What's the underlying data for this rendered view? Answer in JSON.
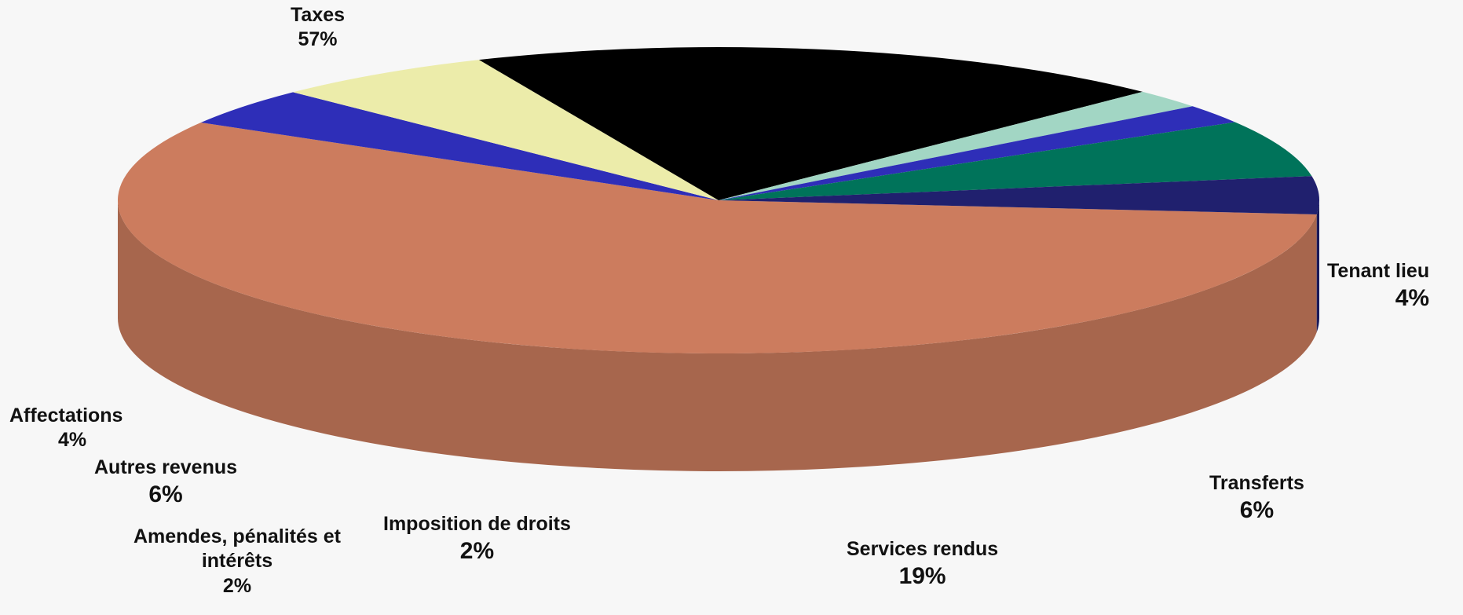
{
  "chart_data": {
    "type": "pie",
    "style": "3d-pie",
    "categories": [
      "Taxes",
      "Tenant lieu",
      "Transferts",
      "Services rendus",
      "Imposition de droits",
      "Amendes, pénalités et intérêts",
      "Autres revenus",
      "Affectations"
    ],
    "values": [
      57,
      4,
      6,
      19,
      2,
      2,
      6,
      4
    ],
    "labels": {
      "taxes": {
        "name": "Taxes",
        "pct": "57%"
      },
      "tenant": {
        "name": "Tenant lieu",
        "pct": "4%"
      },
      "transferts": {
        "name": "Transferts",
        "pct": "6%"
      },
      "services": {
        "name": "Services rendus",
        "pct": "19%"
      },
      "imposition": {
        "name": "Imposition de droits",
        "pct": "2%"
      },
      "amendes": {
        "name1": "Amendes, pénalités et",
        "name2": "intérêts",
        "pct": "2%"
      },
      "autres": {
        "name": "Autres revenus",
        "pct": "6%"
      },
      "affectations": {
        "name": "Affectations",
        "pct": "4%"
      }
    },
    "colors": [
      "#cc7c5e",
      "#2e2eb8",
      "#ececaa",
      "#000000",
      "#a2d6c4",
      "#2e2eb8",
      "#00735a",
      "#20206e"
    ]
  }
}
